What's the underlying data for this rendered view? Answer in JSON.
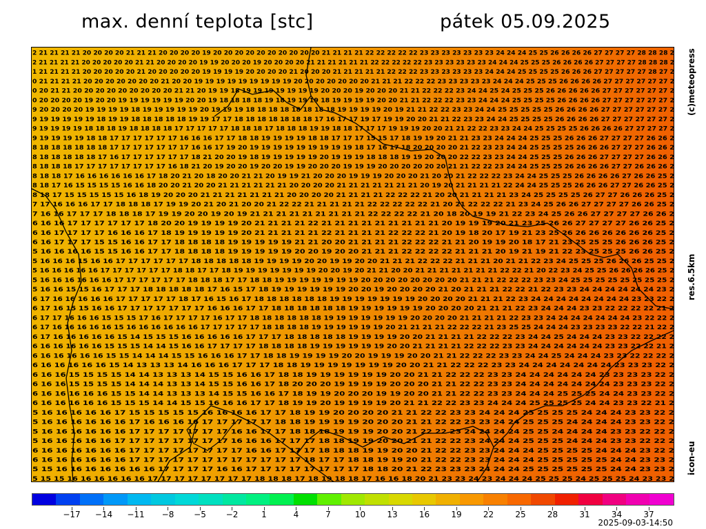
{
  "header": {
    "title_left": "max. denní teplota [stc]",
    "title_right": "pátek 05.09.2025"
  },
  "side_labels": {
    "copyright": "(c)meteopress",
    "resolution": "res.6.5km",
    "model": "icon-eu"
  },
  "timestamp": "2025-09-03-14:50",
  "map": {
    "cols": 68,
    "rows": 46,
    "cell_rows": [
      "2 21 21 21 21 20 20 20 20 21 21 21 20 20 20 20 19 20 20 20 20 20 20 20 20 20 20 21 21 21 21 22 22 22 22 22 23 23 23 23 23 23 23 24 24 24 25 25 26 26 26 26 27 27 27 27 28 28 28 2",
      "2 21 21 21 21 20 20 20 20 20 21 21 20 20 20 20 19 19 20 20 20 19 20 20 20 20 21 21 21 21 21 21 22 22 22 22 22 23 23 23 23 23 23 24 24 24 25 25 25 26 26 26 26 27 27 27 27 28 28 28 2",
      "1 21 21 21 21 20 20 20 20 20 21 20 20 20 20 20 19 19 19 19 20 20 20 20 21 20 20 20 21 21 21 21 21 22 22 22 23 23 23 23 23 23 24 24 24 25 25 25 25 26 26 26 27 27 27 27 27 28 27 2",
      "0 21 21 21 21 20 20 20 20 20 20 20 21 20 20 19 19 19 19 19 19 19 19 19 20 20 20 20 20 20 20 21 21 21 22 22 22 23 23 23 23 23 24 24 24 25 25 25 26 26 26 26 27 27 27 27 27 27 2",
      "0 20 21 21 20 20 20 20 20 20 20 20 20 21 21 20 19 19 18 19 19 19 19 19 19 19 20 20 20 19 20 20 20 21 21 22 22 22 23 24 24 25 24 25 25 25 26 26 26 26 26 27 27 27 27 27 27 2",
      "0 20 20 20 20 19 20 20 19 19 19 19 19 19 20 20 19 18 18 18 18 19 18 19 19 19 18 19 19 19 19 20 20 21 21 22 22 22 23 23 24 24 24 25 25 25 25 26 26 26 26 27 27 27 27 27 27 2",
      "9 20 20 20 20 19 19 19 19 18 19 19 19 19 19 20 19 19 19 18 18 18 18 18 18 18 18 19 19 19 19 20 19 21 21 22 22 23 23 24 24 25 25 25 25 25 26 26 26 26 27 27 27 27 27 27 2",
      "9 19 19 19 19 19 18 19 19 18 18 18 18 18 19 19 17 17 18 18 18 18 18 18 18 17 16 17 17 19 17 19 19 20 20 21 21 22 23 23 24 24 25 25 25 25 26 26 26 26 27 27 27 27 27 27 2",
      "9 19 19 19 19 18 18 18 19 18 18 18 18 17 17 17 17 17 18 18 18 17 18 18 18 19 19 18 18 17 17 17 19 19 19 20 20 21 21 22 22 23 23 24 24 25 25 25 25 26 26 26 26 27 27 27 27 2",
      "9 19 19 19 19 18 18 17 17 17 17 17 17 16 16 16 17 17 18 18 19 19 19 19 18 18 17 17 17 15 15 17 18 19 19 20 21 21 23 23 24 24 24 25 25 25 26 26 26 27 27 27 27 26 26 2",
      "8 18 18 18 18 18 18 17 17 17 17 17 17 17 16 16 17 19 20 19 19 19 19 19 19 19 19 19 18 17 16 17 18 20 20 20 20 21 22 23 23 24 24 25 25 25 25 26 26 26 27 27 27 26 26 2",
      "8 18 18 18 18 18 17 16 17 17 17 17 17 17 18 21 20 20 19 18 19 19 19 19 19 20 19 19 19 18 18 18 19 19 20 20 20 22 22 23 23 24 24 25 25 25 26 26 26 27 27 27 27 26 26 2",
      "8 18 18 18 17 17 17 17 17 17 17 17 16 18 21 20 19 20 20 19 20 20 19 19 20 20 20 19 19 19 20 20 20 20 20 20 21 21 22 22 23 24 24 25 25 25 26 26 26 26 27 27 26 26 26 2",
      "8 18 18 17 16 16 16 16 16 16 17 18 20 21 20 18 20 20 21 21 20 19 19 21 20 20 20 19 19 19 20 20 20 21 20 20 21 22 22 22 23 24 24 25 25 25 26 26 26 26 27 26 26 25 2",
      "8 18 17 16 15 15 15 15 16 16 18 20 20 21 20 20 21 21 21 21 21 21 20 20 20 20 21 21 21 21 21 21 21 20 19 20 21 21 21 21 22 24 24 25 25 25 26 26 26 27 27 26 26 25 2",
      "8 18 17 15 15 15 15 15 16 18 19 20 20 20 21 21 21 21 21 21 21 20 20 20 20 21 21 21 21 22 22 22 21 20 20 21 21 21 21 23 24 25 25 25 25 26 27 27 26 26 26 25 2",
      "7 17 16 16 16 17 17 18 18 18 17 19 19 20 21 20 21 20 20 21 22 22 21 21 21 21 21 22 22 22 22 22 21 20 21 22 22 22 21 23 24 25 26 26 27 27 27 27 26 26 25 2",
      "7 16 16 17 17 17 18 18 18 17 19 19 20 20 19 20 19 21 21 21 21 21 21 21 21 21 22 22 22 22 21 20 18 20 19 19 21 22 23 24 25 26 26 27 27 27 27 26 26 2",
      "6 16 16 17 17 17 17 17 17 18 20 20 19 19 19 19 20 21 21 21 21 22 21 21 21 21 21 21 21 21 21 20 19 19 19 20 21 23 25 26 26 27 27 27 27 26 26 25 2",
      "6 16 17 17 17 17 16 16 16 17 18 19 19 19 19 19 20 21 21 21 21 21 22 21 21 21 21 22 22 22 21 20 19 18 20 17 19 21 23 25 26 26 26 26 26 26 26 25 2",
      "6 16 17 17 17 15 15 16 16 17 17 18 18 18 18 19 19 19 19 19 21 21 20 20 21 21 21 21 22 22 22 21 21 20 19 19 20 18 17 21 23 25 25 25 26 26 26 25 2",
      "5 16 16 16 16 15 15 16 16 17 17 18 18 18 18 19 19 19 19 19 20 20 19 20 20 21 21 21 22 22 22 22 21 21 21 20 19 21 19 21 22 23 25 25 25 26 26 25 2",
      "5 16 16 16 15 16 16 17 17 17 17 17 17 18 18 18 18 18 19 19 19 19 20 20 19 19 20 20 21 21 21 22 22 22 21 21 21 20 21 21 22 23 24 25 25 25 26 26 26 25 25 2",
      "5 16 16 16 16 16 17 17 17 17 17 17 18 18 17 17 18 19 19 19 19 19 19 19 20 20 19 20 21 21 20 20 21 21 21 21 21 21 21 22 22 21 20 22 23 24 25 25 26 26 26 26 25 2",
      "5 16 16 16 16 16 16 17 17 17 17 17 17 18 18 18 17 17 18 18 19 19 19 19 19 19 19 20 20 20 20 20 20 20 20 21 21 21 22 22 22 23 23 24 25 25 25 25 25 25 25 25 2",
      "5 16 16 15 15 16 17 17 17 18 18 18 18 18 17 16 15 17 18 19 19 19 19 19 19 20 20 19 20 20 20 20 21 20 21 21 21 22 22 21 22 23 23 24 24 24 24 24 24 23 2",
      "6 17 16 16 16 16 16 17 17 17 17 17 18 17 16 15 16 17 18 18 18 18 18 18 19 19 19 19 19 19 19 20 20 20 20 21 21 21 22 23 24 24 24 24 24 24 24 24 23 23 22 2",
      "6 17 16 15 15 16 16 17 17 17 17 17 17 17 16 16 16 17 17 18 18 18 18 18 18 19 19 19 19 19 19 20 20 20 20 21 21 21 22 23 24 24 24 23 23 22 22 22 22 21 2",
      "6 17 17 16 16 16 15 15 15 17 16 17 17 17 17 16 17 17 18 18 18 18 18 18 19 19 19 19 19 19 19 20 20 20 20 21 21 21 21 22 23 23 24 24 24 24 24 24 24 23 22 22 2",
      "6 17 16 16 16 16 16 15 16 16 16 16 16 16 17 17 17 17 17 18 18 18 18 19 19 19 19 19 19 20 21 21 21 21 22 22 22 21 23 25 25 24 24 24 23 23 23 23 22 22 21 22 2",
      "6 17 16 16 16 16 16 15 14 15 15 15 16 16 16 16 16 17 17 17 18 18 18 18 18 19 19 19 19 20 20 21 21 21 21 22 22 22 23 24 24 25 24 24 24 23 23 22 22 22 2",
      "6 16 16 16 16 16 15 15 15 14 14 15 16 16 17 17 17 17 18 18 18 18 19 19 19 19 19 19 20 20 21 21 21 21 22 22 22 23 23 24 24 24 24 24 24 23 23 22 22 21 2",
      "6 16 16 16 16 16 15 15 14 14 14 15 15 16 16 16 17 17 18 18 19 19 19 19 20 20 19 19 19 20 20 21 21 22 22 22 23 23 24 24 25 24 24 24 23 23 22 22 22 2",
      "6 16 16 16 16 16 15 14 13 13 13 14 16 16 16 17 17 17 18 18 19 19 19 19 19 19 19 20 20 21 21 22 22 22 23 23 24 24 24 24 24 24 24 23 23 23 22 2",
      "6 16 16 15 15 15 15 14 14 13 13 13 14 15 15 16 16 17 18 18 19 19 19 19 19 19 20 20 21 21 22 22 22 23 23 24 24 24 24 24 24 23 23 23 23 22 2",
      "6 16 16 15 15 15 15 14 14 14 13 13 14 15 15 16 16 17 18 20 20 20 19 19 19 19 20 20 20 21 21 22 22 23 23 24 24 24 24 24 24 24 23 23 23 22 2",
      "6 16 16 16 16 16 15 15 14 14 13 13 13 14 15 15 16 16 17 18 19 19 20 20 20 19 19 20 20 21 21 22 22 23 23 24 24 24 25 25 25 24 24 23 23 22 2",
      "6 16 16 16 16 16 15 15 15 14 14 15 15 16 16 16 17 17 18 19 19 20 19 19 19 19 20 21 21 22 22 23 23 24 24 24 25 25 25 25 24 24 23 23 22 21 2",
      "5 16 16 16 16 16 17 15 15 15 15 15 16 16 16 16 17 17 18 19 19 20 20 20 20 21 21 22 22 23 23 24 24 24 25 25 25 25 24 24 24 23 23 22 2",
      "5 16 16 16 16 16 16 17 16 16 16 16 17 17 17 17 17 18 18 19 19 19 19 20 20 20 21 21 22 22 23 23 24 24 25 25 25 24 24 24 24 23 23 22 2",
      "5 16 16 16 16 16 16 17 17 17 17 17 17 17 16 16 17 17 18 18 18 19 19 19 20 20 21 22 22 23 24 24 24 24 25 25 24 24 24 24 23 23 22 22 2",
      "5 16 16 16 16 16 17 17 17 17 17 17 17 17 16 16 16 17 17 17 18 18 19 19 20 20 21 21 22 22 23 24 24 24 25 25 25 24 24 24 23 23 22 22 2",
      "6 16 16 16 16 16 16 17 17 17 17 17 17 17 17 16 16 17 17 17 18 18 18 19 19 20 20 21 22 22 23 23 24 24 24 25 25 25 25 24 24 24 23 22 2",
      "6 16 16 16 16 16 16 17 17 17 17 17 17 17 17 17 17 17 17 18 17 17 18 18 19 19 20 21 22 22 23 23 24 24 24 25 25 25 25 25 24 24 23 23 2",
      "5 15 16 16 16 16 16 16 16 17 17 17 17 16 16 17 17 17 17 17 17 17 17 18 18 20 21 22 23 23 23 24 24 24 25 25 25 25 25 25 24 24 23 23 2",
      "5 15 15 16 16 16 16 16 16 17 17 17 17 17 17 17 17 18 18 18 17 18 19 18 18 17 16 16 18 20 21 23 23 24 23 24 24 24 25 25 25 24 25 25 25 24 23 23 2"
    ]
  },
  "colorbar": {
    "ticks": [
      "−17",
      "−14",
      "−11",
      "−8",
      "−5",
      "−2",
      "1",
      "4",
      "7",
      "10",
      "13",
      "16",
      "19",
      "22",
      "25",
      "28",
      "31",
      "34",
      "37"
    ],
    "colors": [
      "#0000e0",
      "#0040f0",
      "#0070f8",
      "#0098f8",
      "#00b8f0",
      "#00c8e0",
      "#00d8d8",
      "#00e0c0",
      "#00e8a0",
      "#00f080",
      "#00f050",
      "#00e000",
      "#60f000",
      "#a0e800",
      "#c0e000",
      "#d8d800",
      "#e8c800",
      "#f0b000",
      "#f89800",
      "#f88000",
      "#f86800",
      "#f04800",
      "#f02000",
      "#f00040",
      "#f00080",
      "#f000b0",
      "#f000d0"
    ]
  }
}
